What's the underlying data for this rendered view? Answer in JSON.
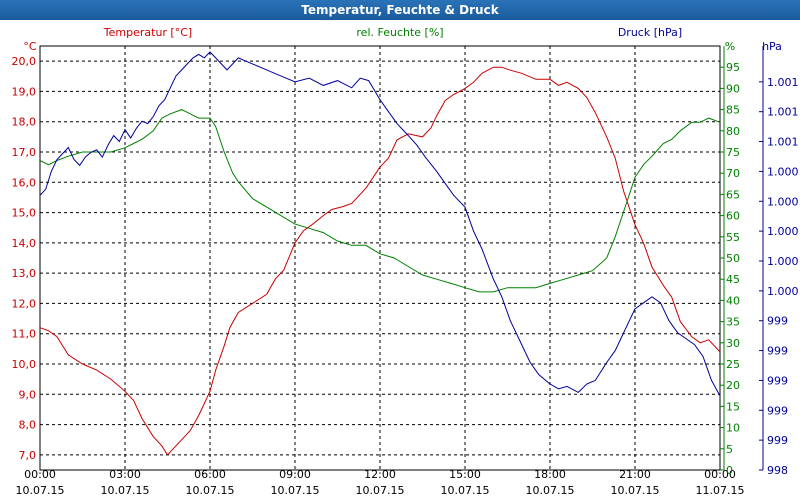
{
  "chart_data": {
    "type": "line",
    "title": "Temperatur, Feuchte & Druck",
    "x_ticks": [
      {
        "time": "00:00",
        "date": "10.07.15"
      },
      {
        "time": "03:00",
        "date": "10.07.15"
      },
      {
        "time": "06:00",
        "date": "10.07.15"
      },
      {
        "time": "09:00",
        "date": "10.07.15"
      },
      {
        "time": "12:00",
        "date": "10.07.15"
      },
      {
        "time": "15:00",
        "date": "10.07.15"
      },
      {
        "time": "18:00",
        "date": "10.07.15"
      },
      {
        "time": "21:00",
        "date": "10.07.15"
      },
      {
        "time": "00:00",
        "date": "11.07.15"
      }
    ],
    "x_range_hours": [
      0,
      24
    ],
    "grid": true,
    "axes": {
      "temperature": {
        "label": "Temperatur [°C]",
        "unit": "°C",
        "range": [
          6.5,
          20.5
        ],
        "ticks": [
          "7,0",
          "8,0",
          "9,0",
          "10,0",
          "11,0",
          "12,0",
          "13,0",
          "14,0",
          "15,0",
          "16,0",
          "17,0",
          "18,0",
          "19,0",
          "20,0"
        ],
        "color": "#cc0000"
      },
      "humidity": {
        "label": "rel. Feuchte [%]",
        "unit": "%",
        "range": [
          0,
          100
        ],
        "ticks": [
          "0",
          "5",
          "10",
          "15",
          "20",
          "25",
          "30",
          "35",
          "40",
          "45",
          "50",
          "55",
          "60",
          "65",
          "70",
          "75",
          "80",
          "85",
          "90",
          "95"
        ],
        "color": "#008000"
      },
      "pressure": {
        "label": "Druck [hPa]",
        "unit": "hPa",
        "range": [
          998.0,
          1001.55
        ],
        "ticks": [
          "998",
          "999",
          "999",
          "999",
          "999",
          "999",
          "1.000",
          "1.000",
          "1.000",
          "1.000",
          "1.000",
          "1.001",
          "1.001",
          "1.001"
        ],
        "color": "#000099"
      }
    },
    "series": [
      {
        "name": "Temperatur",
        "axis": "temperature",
        "color": "#cc0000",
        "points": [
          [
            0,
            11.2
          ],
          [
            0.3,
            11.1
          ],
          [
            0.6,
            10.9
          ],
          [
            1.0,
            10.3
          ],
          [
            1.5,
            10.0
          ],
          [
            2.0,
            9.8
          ],
          [
            2.5,
            9.5
          ],
          [
            3.0,
            9.1
          ],
          [
            3.3,
            8.8
          ],
          [
            3.6,
            8.2
          ],
          [
            4.0,
            7.6
          ],
          [
            4.3,
            7.3
          ],
          [
            4.5,
            7.0
          ],
          [
            4.7,
            7.2
          ],
          [
            5.0,
            7.5
          ],
          [
            5.3,
            7.8
          ],
          [
            5.6,
            8.3
          ],
          [
            6.0,
            9.1
          ],
          [
            6.2,
            9.8
          ],
          [
            6.5,
            10.6
          ],
          [
            6.7,
            11.2
          ],
          [
            7.0,
            11.7
          ],
          [
            7.5,
            12.0
          ],
          [
            8.0,
            12.3
          ],
          [
            8.3,
            12.8
          ],
          [
            8.6,
            13.1
          ],
          [
            9.0,
            14.0
          ],
          [
            9.3,
            14.4
          ],
          [
            9.6,
            14.6
          ],
          [
            10.0,
            14.9
          ],
          [
            10.3,
            15.1
          ],
          [
            10.7,
            15.2
          ],
          [
            11.0,
            15.3
          ],
          [
            11.5,
            15.8
          ],
          [
            12.0,
            16.5
          ],
          [
            12.3,
            16.8
          ],
          [
            12.6,
            17.4
          ],
          [
            13.0,
            17.6
          ],
          [
            13.5,
            17.5
          ],
          [
            13.8,
            17.8
          ],
          [
            14.0,
            18.2
          ],
          [
            14.3,
            18.7
          ],
          [
            14.6,
            18.9
          ],
          [
            15.0,
            19.1
          ],
          [
            15.3,
            19.3
          ],
          [
            15.6,
            19.6
          ],
          [
            16.0,
            19.8
          ],
          [
            16.3,
            19.8
          ],
          [
            16.6,
            19.7
          ],
          [
            17.0,
            19.6
          ],
          [
            17.5,
            19.4
          ],
          [
            18.0,
            19.4
          ],
          [
            18.3,
            19.2
          ],
          [
            18.6,
            19.3
          ],
          [
            19.0,
            19.1
          ],
          [
            19.3,
            18.8
          ],
          [
            19.6,
            18.3
          ],
          [
            20.0,
            17.5
          ],
          [
            20.3,
            16.8
          ],
          [
            20.6,
            15.7
          ],
          [
            21.0,
            14.6
          ],
          [
            21.3,
            14.0
          ],
          [
            21.6,
            13.2
          ],
          [
            22.0,
            12.6
          ],
          [
            22.3,
            12.2
          ],
          [
            22.6,
            11.4
          ],
          [
            23.0,
            10.9
          ],
          [
            23.3,
            10.7
          ],
          [
            23.6,
            10.8
          ],
          [
            24.0,
            10.4
          ]
        ]
      },
      {
        "name": "rel. Feuchte",
        "axis": "humidity",
        "color": "#008000",
        "points": [
          [
            0,
            73
          ],
          [
            0.3,
            72
          ],
          [
            0.6,
            73
          ],
          [
            1.0,
            74
          ],
          [
            1.5,
            75
          ],
          [
            2.0,
            75
          ],
          [
            2.5,
            75
          ],
          [
            3.0,
            76
          ],
          [
            3.3,
            77
          ],
          [
            3.6,
            78
          ],
          [
            4.0,
            80
          ],
          [
            4.3,
            83
          ],
          [
            4.6,
            84
          ],
          [
            5.0,
            85
          ],
          [
            5.3,
            84
          ],
          [
            5.6,
            83
          ],
          [
            6.0,
            83
          ],
          [
            6.2,
            81
          ],
          [
            6.5,
            75
          ],
          [
            6.8,
            70
          ],
          [
            7.0,
            68
          ],
          [
            7.5,
            64
          ],
          [
            8.0,
            62
          ],
          [
            8.5,
            60
          ],
          [
            9.0,
            58
          ],
          [
            9.5,
            57
          ],
          [
            10.0,
            56
          ],
          [
            10.5,
            54
          ],
          [
            11.0,
            53
          ],
          [
            11.5,
            53
          ],
          [
            12.0,
            51
          ],
          [
            12.5,
            50
          ],
          [
            13.0,
            48
          ],
          [
            13.5,
            46
          ],
          [
            14.0,
            45
          ],
          [
            14.5,
            44
          ],
          [
            15.0,
            43
          ],
          [
            15.5,
            42
          ],
          [
            16.0,
            42
          ],
          [
            16.5,
            43
          ],
          [
            17.0,
            43
          ],
          [
            17.5,
            43
          ],
          [
            18.0,
            44
          ],
          [
            18.5,
            45
          ],
          [
            19.0,
            46
          ],
          [
            19.5,
            47
          ],
          [
            20.0,
            50
          ],
          [
            20.3,
            55
          ],
          [
            20.6,
            61
          ],
          [
            21.0,
            69
          ],
          [
            21.3,
            72
          ],
          [
            21.6,
            74
          ],
          [
            22.0,
            77
          ],
          [
            22.3,
            78
          ],
          [
            22.6,
            80
          ],
          [
            23.0,
            82
          ],
          [
            23.3,
            82
          ],
          [
            23.6,
            83
          ],
          [
            24.0,
            82
          ]
        ]
      },
      {
        "name": "Druck",
        "axis": "pressure",
        "color": "#000099",
        "points": [
          [
            0,
            1000.3
          ],
          [
            0.2,
            1000.35
          ],
          [
            0.4,
            1000.5
          ],
          [
            0.6,
            1000.6
          ],
          [
            0.8,
            1000.65
          ],
          [
            1.0,
            1000.7
          ],
          [
            1.2,
            1000.6
          ],
          [
            1.4,
            1000.55
          ],
          [
            1.6,
            1000.62
          ],
          [
            1.8,
            1000.66
          ],
          [
            2.0,
            1000.68
          ],
          [
            2.2,
            1000.62
          ],
          [
            2.4,
            1000.72
          ],
          [
            2.6,
            1000.8
          ],
          [
            2.8,
            1000.75
          ],
          [
            3.0,
            1000.85
          ],
          [
            3.2,
            1000.78
          ],
          [
            3.4,
            1000.86
          ],
          [
            3.6,
            1000.92
          ],
          [
            3.8,
            1000.9
          ],
          [
            4.0,
            1000.96
          ],
          [
            4.2,
            1001.05
          ],
          [
            4.4,
            1001.1
          ],
          [
            4.6,
            1001.2
          ],
          [
            4.8,
            1001.3
          ],
          [
            5.0,
            1001.35
          ],
          [
            5.2,
            1001.4
          ],
          [
            5.4,
            1001.45
          ],
          [
            5.6,
            1001.48
          ],
          [
            5.8,
            1001.45
          ],
          [
            6.0,
            1001.5
          ],
          [
            6.2,
            1001.45
          ],
          [
            6.4,
            1001.4
          ],
          [
            6.6,
            1001.35
          ],
          [
            6.8,
            1001.4
          ],
          [
            7.0,
            1001.45
          ],
          [
            7.5,
            1001.4
          ],
          [
            8.0,
            1001.35
          ],
          [
            8.5,
            1001.3
          ],
          [
            9.0,
            1001.25
          ],
          [
            9.5,
            1001.28
          ],
          [
            10.0,
            1001.22
          ],
          [
            10.5,
            1001.26
          ],
          [
            11.0,
            1001.2
          ],
          [
            11.3,
            1001.28
          ],
          [
            11.6,
            1001.26
          ],
          [
            12.0,
            1001.1
          ],
          [
            12.3,
            1001.0
          ],
          [
            12.6,
            1000.9
          ],
          [
            13.0,
            1000.8
          ],
          [
            13.3,
            1000.72
          ],
          [
            13.6,
            1000.62
          ],
          [
            14.0,
            1000.5
          ],
          [
            14.3,
            1000.4
          ],
          [
            14.6,
            1000.3
          ],
          [
            15.0,
            1000.2
          ],
          [
            15.3,
            1000.0
          ],
          [
            15.6,
            999.85
          ],
          [
            16.0,
            999.6
          ],
          [
            16.3,
            999.45
          ],
          [
            16.6,
            999.25
          ],
          [
            17.0,
            999.05
          ],
          [
            17.3,
            998.9
          ],
          [
            17.6,
            998.8
          ],
          [
            18.0,
            998.72
          ],
          [
            18.3,
            998.68
          ],
          [
            18.6,
            998.7
          ],
          [
            19.0,
            998.65
          ],
          [
            19.3,
            998.72
          ],
          [
            19.6,
            998.75
          ],
          [
            20.0,
            998.9
          ],
          [
            20.3,
            999.0
          ],
          [
            20.6,
            999.15
          ],
          [
            21.0,
            999.35
          ],
          [
            21.3,
            999.4
          ],
          [
            21.6,
            999.45
          ],
          [
            21.9,
            999.4
          ],
          [
            22.2,
            999.25
          ],
          [
            22.5,
            999.15
          ],
          [
            22.8,
            999.1
          ],
          [
            23.1,
            999.05
          ],
          [
            23.4,
            998.95
          ],
          [
            23.7,
            998.75
          ],
          [
            24.0,
            998.62
          ]
        ]
      }
    ]
  }
}
